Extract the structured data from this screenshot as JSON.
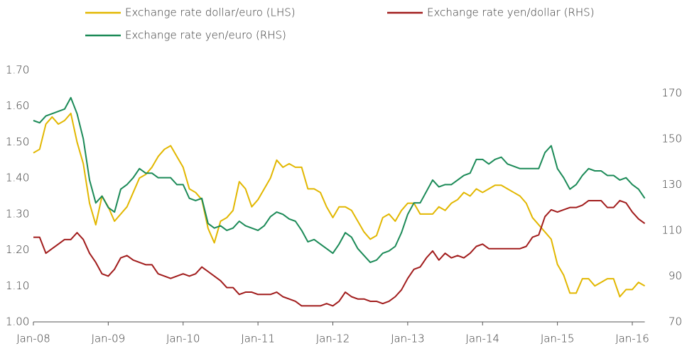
{
  "chart_data": {
    "type": "line",
    "legend": "top",
    "grid": false,
    "categories": [
      "Jan-08",
      null,
      null,
      null,
      null,
      null,
      null,
      null,
      null,
      null,
      null,
      null,
      "Jan-09",
      null,
      null,
      null,
      null,
      null,
      null,
      null,
      null,
      null,
      null,
      null,
      "Jan-10",
      null,
      null,
      null,
      null,
      null,
      null,
      null,
      null,
      null,
      null,
      null,
      "Jan-11",
      null,
      null,
      null,
      null,
      null,
      null,
      null,
      null,
      null,
      null,
      null,
      "Jan-12",
      null,
      null,
      null,
      null,
      null,
      null,
      null,
      null,
      null,
      null,
      null,
      "Jan-13",
      null,
      null,
      null,
      null,
      null,
      null,
      null,
      null,
      null,
      null,
      null,
      "Jan-14",
      null,
      null,
      null,
      null,
      null,
      null,
      null,
      null,
      null,
      null,
      null,
      "Jan-15",
      null,
      null,
      null,
      null,
      null,
      null,
      null,
      null,
      null,
      null,
      null,
      "Jan-16",
      null,
      null
    ],
    "ylim": [
      1.0,
      1.7
    ],
    "yticks": [
      {
        "value": 1.0,
        "label": "1.00"
      },
      {
        "value": 1.1,
        "label": "1.10"
      },
      {
        "value": 1.2,
        "label": "1.20"
      },
      {
        "value": 1.3,
        "label": "1.30"
      },
      {
        "value": 1.4,
        "label": "1.40"
      },
      {
        "value": 1.5,
        "label": "1.50"
      },
      {
        "value": 1.6,
        "label": "1.60"
      },
      {
        "value": 1.7,
        "label": "1.70"
      }
    ],
    "y2lim": [
      70,
      180
    ],
    "y2ticks": [
      70,
      90,
      110,
      130,
      150,
      170
    ],
    "series": [
      {
        "name": "Exchange rate dollar/euro (LHS)",
        "color": "#e2b700",
        "axis": "y",
        "values": [
          1.47,
          1.48,
          1.55,
          1.57,
          1.55,
          1.56,
          1.58,
          1.5,
          1.44,
          1.33,
          1.27,
          1.35,
          1.32,
          1.28,
          1.3,
          1.32,
          1.36,
          1.4,
          1.41,
          1.43,
          1.46,
          1.48,
          1.49,
          1.46,
          1.43,
          1.37,
          1.36,
          1.34,
          1.26,
          1.22,
          1.28,
          1.29,
          1.31,
          1.39,
          1.37,
          1.32,
          1.34,
          1.37,
          1.4,
          1.45,
          1.43,
          1.44,
          1.43,
          1.43,
          1.37,
          1.37,
          1.36,
          1.32,
          1.29,
          1.32,
          1.32,
          1.31,
          1.28,
          1.25,
          1.23,
          1.24,
          1.29,
          1.3,
          1.28,
          1.31,
          1.33,
          1.33,
          1.3,
          1.3,
          1.3,
          1.32,
          1.31,
          1.33,
          1.34,
          1.36,
          1.35,
          1.37,
          1.36,
          1.37,
          1.38,
          1.38,
          1.37,
          1.36,
          1.35,
          1.33,
          1.29,
          1.27,
          1.25,
          1.23,
          1.16,
          1.13,
          1.08,
          1.08,
          1.12,
          1.12,
          1.1,
          1.11,
          1.12,
          1.12,
          1.07,
          1.09,
          1.09,
          1.11,
          1.1
        ]
      },
      {
        "name": "Exchange rate yen/dollar (RHS)",
        "color": "#a11c1c",
        "axis": "y2",
        "values": [
          107,
          107,
          100,
          102,
          104,
          106,
          106,
          109,
          106,
          100,
          96,
          91,
          90,
          93,
          98,
          99,
          97,
          96,
          95,
          95,
          91,
          90,
          89,
          90,
          91,
          90,
          91,
          94,
          92,
          90,
          88,
          85,
          85,
          82,
          83,
          83,
          82,
          82,
          82,
          83,
          81,
          80,
          79,
          77,
          77,
          77,
          77,
          78,
          77,
          79,
          83,
          81,
          80,
          80,
          79,
          79,
          78,
          79,
          81,
          84,
          89,
          93,
          94,
          98,
          101,
          97,
          100,
          98,
          99,
          98,
          100,
          103,
          104,
          102,
          102,
          102,
          102,
          102,
          102,
          103,
          107,
          108,
          116,
          119,
          118,
          119,
          120,
          120,
          121,
          123,
          123,
          123,
          120,
          120,
          123,
          122,
          118,
          115,
          113
        ]
      },
      {
        "name": "Exchange rate yen/euro (RHS)",
        "color": "#1b8a57",
        "axis": "y2",
        "values": [
          158,
          157,
          160,
          161,
          162,
          163,
          168,
          161,
          150,
          132,
          122,
          125,
          120,
          118,
          128,
          130,
          133,
          137,
          135,
          135,
          133,
          133,
          133,
          130,
          130,
          124,
          123,
          124,
          113,
          111,
          112,
          110,
          111,
          114,
          112,
          111,
          110,
          112,
          116,
          118,
          117,
          115,
          114,
          110,
          105,
          106,
          104,
          102,
          100,
          104,
          109,
          107,
          102,
          99,
          96,
          97,
          100,
          101,
          103,
          109,
          117,
          122,
          122,
          127,
          132,
          129,
          130,
          130,
          132,
          134,
          135,
          141,
          141,
          139,
          141,
          142,
          139,
          138,
          137,
          137,
          137,
          137,
          144,
          147,
          137,
          133,
          128,
          130,
          134,
          137,
          136,
          136,
          134,
          134,
          132,
          133,
          130,
          128,
          124
        ]
      }
    ]
  }
}
